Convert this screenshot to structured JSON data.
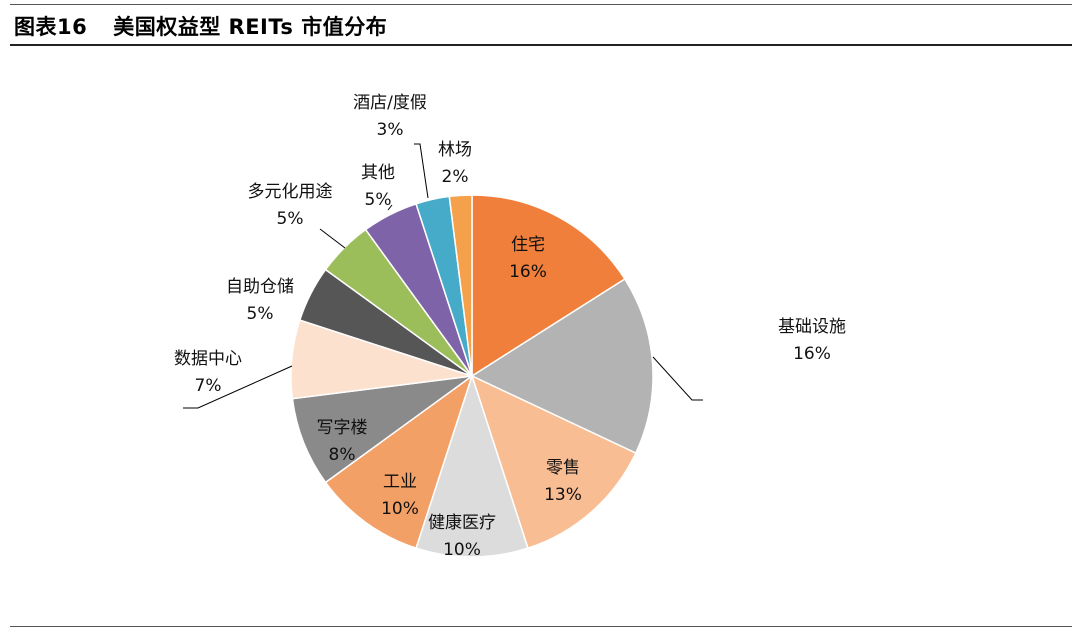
{
  "figure": {
    "number": "图表16",
    "title": "美国权益型 REITs 市值分布"
  },
  "chart_data": {
    "type": "pie",
    "start": "top",
    "direction": "clockwise",
    "slices": [
      {
        "label": "住宅",
        "value": 16,
        "display": "16%",
        "color": "#F07F3B"
      },
      {
        "label": "基础设施",
        "value": 16,
        "display": "16%",
        "color": "#B3B3B3"
      },
      {
        "label": "零售",
        "value": 13,
        "display": "13%",
        "color": "#F8BD92"
      },
      {
        "label": "健康医疗",
        "value": 10,
        "display": "10%",
        "color": "#DCDCDC"
      },
      {
        "label": "工业",
        "value": 10,
        "display": "10%",
        "color": "#F3A066"
      },
      {
        "label": "写字楼",
        "value": 8,
        "display": "8%",
        "color": "#8A8A8A"
      },
      {
        "label": "数据中心",
        "value": 7,
        "display": "7%",
        "color": "#FCE1CE"
      },
      {
        "label": "自助仓储",
        "value": 5,
        "display": "5%",
        "color": "#565656"
      },
      {
        "label": "多元化用途",
        "value": 5,
        "display": "5%",
        "color": "#9BBE5B"
      },
      {
        "label": "其他",
        "value": 5,
        "display": "5%",
        "color": "#7E63A8"
      },
      {
        "label": "酒店/度假",
        "value": 3,
        "display": "3%",
        "color": "#45ABC8"
      },
      {
        "label": "林场",
        "value": 2,
        "display": "2%",
        "color": "#F5A14C"
      }
    ]
  }
}
